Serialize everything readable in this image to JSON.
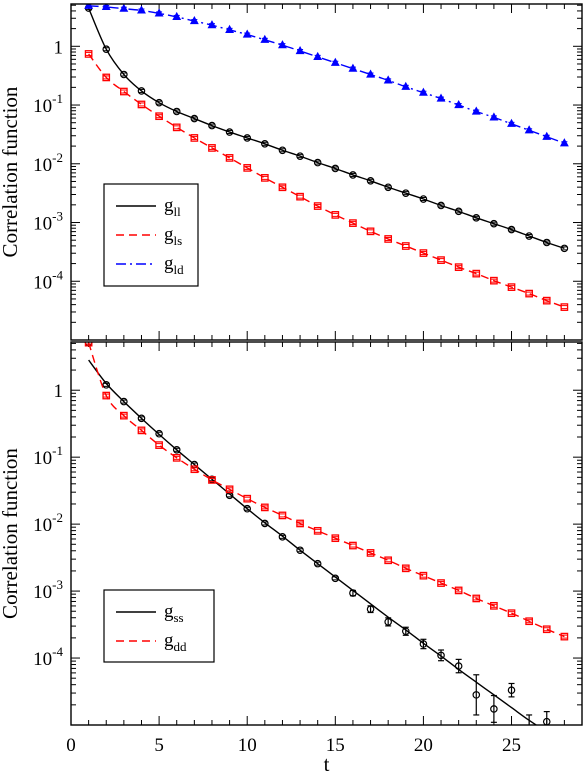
{
  "chart_data": [
    {
      "type": "line",
      "ylabel": "Correlation function",
      "xlabel": "",
      "yscale": "log",
      "xlim": [
        0,
        29
      ],
      "ylim_log10": [
        -5.0,
        0.72
      ],
      "yticks": [
        {
          "main": "10",
          "exp": "-4",
          "log": -4
        },
        {
          "main": "10",
          "exp": "-3",
          "log": -3
        },
        {
          "main": "10",
          "exp": "-2",
          "log": -2
        },
        {
          "main": "10",
          "exp": "-1",
          "log": -1
        },
        {
          "main": "1",
          "exp": "",
          "log": 0
        }
      ],
      "legend": "lower-left",
      "series": [
        {
          "name": "g",
          "sub": "ll",
          "color": "#000000",
          "dash": "",
          "marker": "circle",
          "x": [
            1,
            2,
            3,
            4,
            5,
            6,
            7,
            8,
            9,
            10,
            11,
            12,
            13,
            14,
            15,
            16,
            17,
            18,
            19,
            20,
            21,
            22,
            23,
            24,
            25,
            26,
            27,
            28
          ],
          "log10y": [
            0.65,
            -0.05,
            -0.48,
            -0.76,
            -0.96,
            -1.11,
            -1.23,
            -1.35,
            -1.46,
            -1.56,
            -1.66,
            -1.77,
            -1.87,
            -1.98,
            -2.08,
            -2.19,
            -2.29,
            -2.4,
            -2.5,
            -2.6,
            -2.71,
            -2.81,
            -2.92,
            -3.02,
            -3.12,
            -3.23,
            -3.34,
            -3.44
          ]
        },
        {
          "name": "g",
          "sub": "ls",
          "color": "#ff0000",
          "dash": "8,5",
          "marker": "square",
          "x": [
            1,
            2,
            3,
            4,
            5,
            6,
            7,
            8,
            9,
            10,
            11,
            12,
            13,
            14,
            15,
            16,
            17,
            18,
            19,
            20,
            21,
            22,
            23,
            24,
            25,
            26,
            27,
            28
          ],
          "log10y": [
            -0.13,
            -0.53,
            -0.77,
            -0.99,
            -1.19,
            -1.38,
            -1.56,
            -1.73,
            -1.9,
            -2.07,
            -2.24,
            -2.4,
            -2.56,
            -2.72,
            -2.87,
            -3.01,
            -3.15,
            -3.28,
            -3.4,
            -3.52,
            -3.64,
            -3.76,
            -3.87,
            -3.99,
            -4.1,
            -4.21,
            -4.33,
            -4.44
          ]
        },
        {
          "name": "g",
          "sub": "ld",
          "color": "#0000ff",
          "dash": "10,4,2,4",
          "marker": "triangle",
          "x": [
            1,
            2,
            3,
            4,
            5,
            6,
            7,
            8,
            9,
            10,
            11,
            12,
            13,
            14,
            15,
            16,
            17,
            18,
            19,
            20,
            21,
            22,
            23,
            24,
            25,
            26,
            27,
            28
          ],
          "log10y": [
            0.69,
            0.67,
            0.64,
            0.61,
            0.56,
            0.5,
            0.43,
            0.36,
            0.28,
            0.2,
            0.11,
            0.02,
            -0.08,
            -0.18,
            -0.28,
            -0.38,
            -0.48,
            -0.58,
            -0.69,
            -0.79,
            -0.89,
            -1.0,
            -1.11,
            -1.21,
            -1.32,
            -1.43,
            -1.54,
            -1.65
          ]
        }
      ]
    },
    {
      "type": "line",
      "ylabel": "Correlation function",
      "xlabel": "t",
      "yscale": "log",
      "xlim": [
        0,
        29
      ],
      "ylim_log10": [
        -5.0,
        0.72
      ],
      "xticks": [
        0,
        5,
        10,
        15,
        20,
        25
      ],
      "yticks": [
        {
          "main": "10",
          "exp": "-4",
          "log": -4
        },
        {
          "main": "10",
          "exp": "-3",
          "log": -3
        },
        {
          "main": "10",
          "exp": "-2",
          "log": -2
        },
        {
          "main": "10",
          "exp": "-1",
          "log": -1
        },
        {
          "main": "1",
          "exp": "",
          "log": 0
        }
      ],
      "legend": "lower-left",
      "series": [
        {
          "name": "g",
          "sub": "ss",
          "color": "#000000",
          "dash": "",
          "marker": "circle",
          "curve_x": [
            1,
            2,
            3,
            4,
            5,
            6,
            7,
            8,
            9,
            10,
            11,
            12,
            13,
            14,
            15,
            16,
            17,
            18,
            19,
            20,
            21,
            22,
            23,
            24,
            25,
            26,
            27,
            28
          ],
          "curve_log10y": [
            0.45,
            0.1,
            -0.17,
            -0.42,
            -0.66,
            -0.89,
            -1.11,
            -1.33,
            -1.55,
            -1.77,
            -1.98,
            -2.18,
            -2.39,
            -2.59,
            -2.79,
            -2.99,
            -3.19,
            -3.39,
            -3.58,
            -3.78,
            -3.97,
            -4.17,
            -4.36,
            -4.55,
            -4.74,
            -4.93,
            -5.1,
            -5.25
          ],
          "x": [
            1,
            2,
            3,
            4,
            5,
            6,
            7,
            8,
            9,
            10,
            11,
            12,
            13,
            14,
            15,
            16,
            17,
            18,
            19,
            20,
            21,
            22,
            23,
            24,
            25,
            26,
            27
          ],
          "log10y": [
            0.71,
            0.08,
            -0.17,
            -0.42,
            -0.65,
            -0.89,
            -1.11,
            -1.33,
            -1.57,
            -1.77,
            -1.99,
            -2.19,
            -2.39,
            -2.59,
            -2.81,
            -3.03,
            -3.27,
            -3.46,
            -3.6,
            -3.79,
            -3.96,
            -4.12,
            -4.55,
            -4.76,
            -4.48,
            -5.45,
            -4.95
          ],
          "err": [
            0,
            0,
            0,
            0,
            0,
            0,
            0,
            0,
            0,
            0,
            0,
            0,
            0,
            0,
            0,
            0.04,
            0.05,
            0.06,
            0.06,
            0.07,
            0.08,
            0.1,
            0.3,
            0.2,
            0.1,
            0.6,
            0.15
          ]
        },
        {
          "name": "g",
          "sub": "dd",
          "color": "#ff0000",
          "dash": "8,5",
          "marker": "square",
          "x": [
            1,
            2,
            3,
            4,
            5,
            6,
            7,
            8,
            9,
            10,
            11,
            12,
            13,
            14,
            15,
            16,
            17,
            18,
            19,
            20,
            21,
            22,
            23,
            24,
            25,
            26,
            27,
            28
          ],
          "log10y": [
            0.71,
            -0.08,
            -0.38,
            -0.6,
            -0.82,
            -1.01,
            -1.18,
            -1.34,
            -1.48,
            -1.62,
            -1.75,
            -1.87,
            -1.99,
            -2.1,
            -2.21,
            -2.32,
            -2.43,
            -2.54,
            -2.66,
            -2.77,
            -2.88,
            -2.99,
            -3.11,
            -3.22,
            -3.33,
            -3.45,
            -3.57,
            -3.68
          ]
        }
      ]
    }
  ]
}
